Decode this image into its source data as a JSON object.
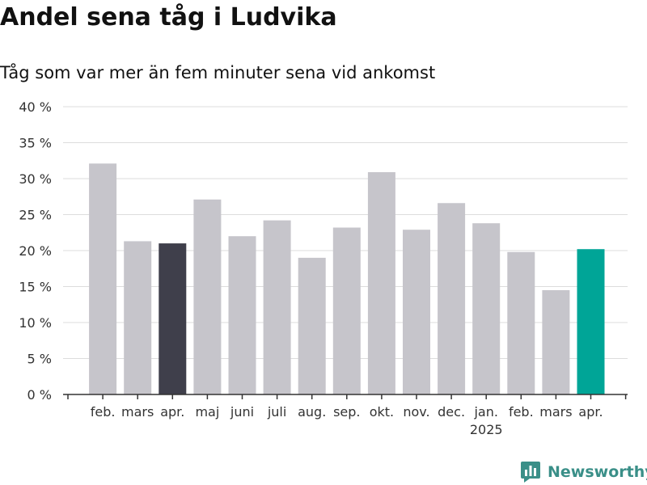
{
  "title": "Andel sena tåg i Ludvika",
  "subtitle": "Tåg som var mer än fem minuter sena vid ankomst",
  "brand": {
    "name": "Newsworthy",
    "icon": "newsworthy-logo-icon",
    "color": "#3a8f88"
  },
  "colors": {
    "default_bar": "#c6c5cb",
    "highlight_start": "#3f3f4b",
    "highlight_end": "#00a597",
    "gridline": "#dddddd",
    "axis": "#333333"
  },
  "chart_data": {
    "type": "bar",
    "title": "Andel sena tåg i Ludvika",
    "subtitle": "Tåg som var mer än fem minuter sena vid ankomst",
    "xlabel": "",
    "ylabel": "",
    "y_tick_labels": [
      "0 %",
      "5 %",
      "10 %",
      "15 %",
      "20 %",
      "25 %",
      "30 %",
      "35 %",
      "40 %"
    ],
    "y_ticks": [
      0,
      5,
      10,
      15,
      20,
      25,
      30,
      35,
      40
    ],
    "ylim": [
      0,
      40
    ],
    "grid": true,
    "categories": [
      "feb.",
      "mars",
      "apr.",
      "maj",
      "juni",
      "juli",
      "aug.",
      "sep.",
      "okt.",
      "nov.",
      "dec.",
      "jan.",
      "feb.",
      "mars",
      "apr."
    ],
    "year_label": "2025",
    "year_label_under": "jan.",
    "values": [
      32.1,
      21.3,
      21.0,
      27.1,
      22.0,
      24.2,
      19.0,
      23.2,
      30.9,
      22.9,
      26.6,
      23.8,
      19.8,
      14.5,
      20.2
    ],
    "highlight": {
      "apr. 2024": "#3f3f4b",
      "apr. 2025": "#00a597"
    }
  }
}
